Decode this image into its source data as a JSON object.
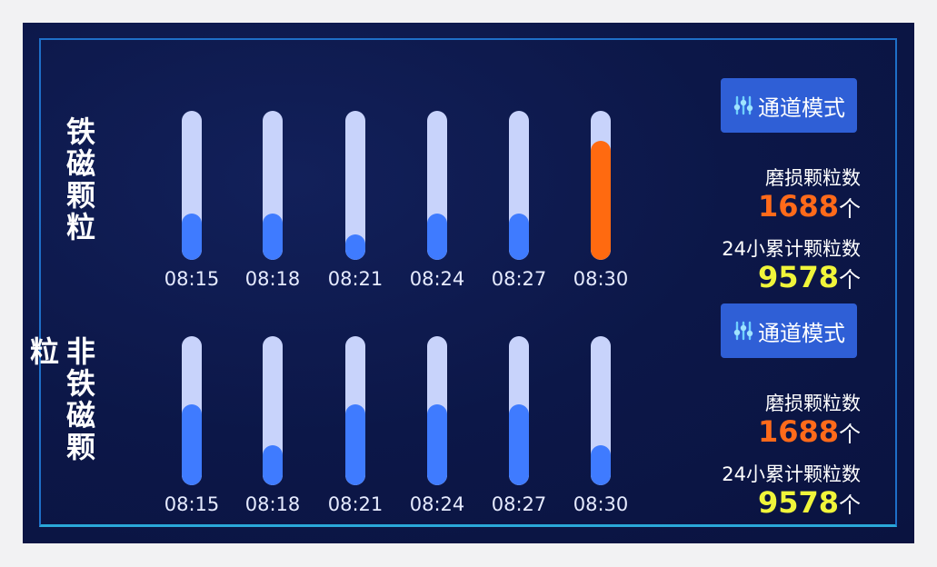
{
  "colors": {
    "normal_fill": "#3f7bff",
    "alert_fill": "#ff6a10",
    "track": "#c8d3fb",
    "wear_value": "#ff6a1a",
    "total_value": "#f0f53a",
    "button": "#2f5fd6"
  },
  "sections": [
    {
      "title": "铁磁颗粒",
      "button": {
        "label": "通道模式",
        "icon": "channel-sliders-icon"
      },
      "bars": [
        {
          "time": "08:15",
          "level": 0.31,
          "alert": false
        },
        {
          "time": "08:18",
          "level": 0.31,
          "alert": false
        },
        {
          "time": "08:21",
          "level": 0.17,
          "alert": false
        },
        {
          "time": "08:24",
          "level": 0.31,
          "alert": false
        },
        {
          "time": "08:27",
          "level": 0.31,
          "alert": false
        },
        {
          "time": "08:30",
          "level": 0.8,
          "alert": true
        }
      ],
      "wear_label": "磨损颗粒数",
      "wear_value": "1688",
      "wear_unit": "个",
      "total_label": "24小累计颗粒数",
      "total_value": "9578",
      "total_unit": "个"
    },
    {
      "title": "非铁磁颗粒",
      "button": {
        "label": "通道模式",
        "icon": "channel-sliders-icon"
      },
      "bars": [
        {
          "time": "08:15",
          "level": 0.54,
          "alert": false
        },
        {
          "time": "08:18",
          "level": 0.27,
          "alert": false
        },
        {
          "time": "08:21",
          "level": 0.54,
          "alert": false
        },
        {
          "time": "08:24",
          "level": 0.54,
          "alert": false
        },
        {
          "time": "08:27",
          "level": 0.54,
          "alert": false
        },
        {
          "time": "08:30",
          "level": 0.27,
          "alert": false
        }
      ],
      "wear_label": "磨损颗粒数",
      "wear_value": "1688",
      "wear_unit": "个",
      "total_label": "24小累计颗粒数",
      "total_value": "9578",
      "total_unit": "个"
    }
  ]
}
